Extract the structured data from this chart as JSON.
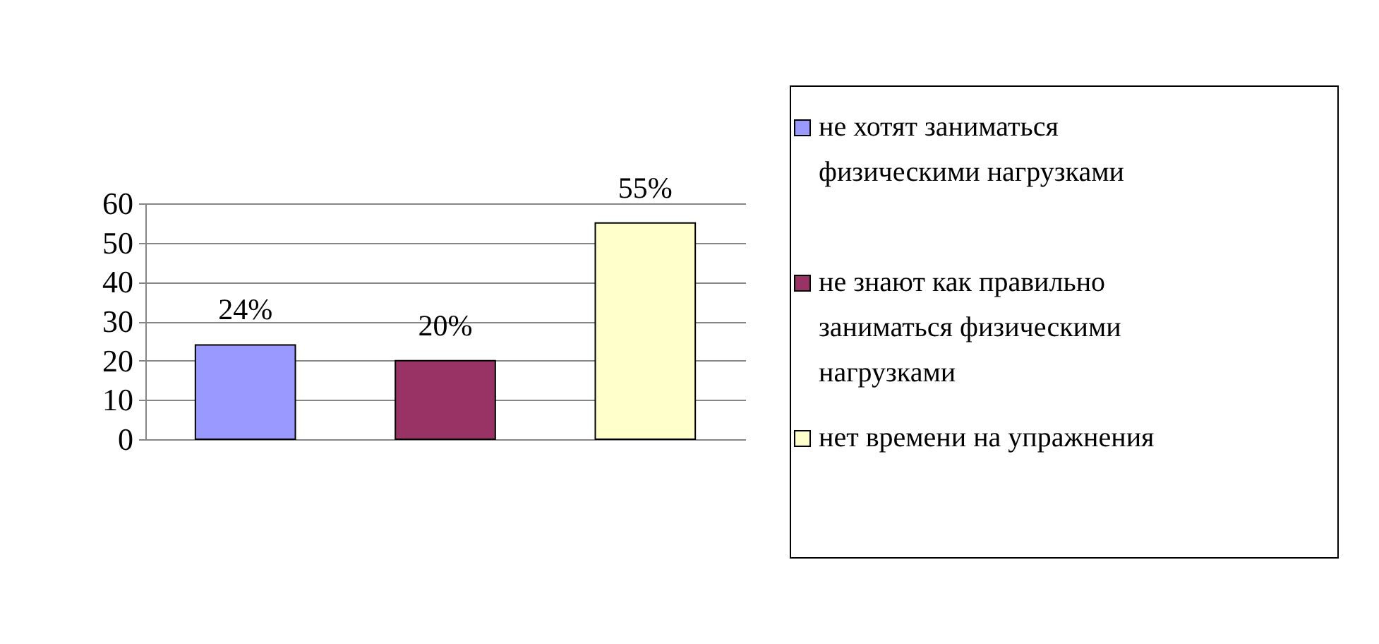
{
  "chart_data": {
    "type": "bar",
    "categories": [
      null,
      null,
      null
    ],
    "series": [
      {
        "name": "не хотят заниматься физическими нагрузками",
        "color": "#9999ff",
        "values": [
          24,
          null,
          null
        ],
        "value_labels": [
          "24%",
          null,
          null
        ]
      },
      {
        "name": "не знают как правильно заниматься физическими нагрузками",
        "color": "#993366",
        "values": [
          null,
          20,
          null
        ],
        "value_labels": [
          null,
          "20%",
          null
        ]
      },
      {
        "name": "нет времени на упражнения",
        "color": "#ffffcc",
        "values": [
          null,
          null,
          55
        ],
        "value_labels": [
          null,
          null,
          "55%"
        ]
      }
    ],
    "ylim": [
      0,
      60
    ],
    "yticks": [
      0,
      10,
      20,
      30,
      40,
      50,
      60
    ],
    "grid": "y",
    "legend": "right",
    "tick_labels": "y"
  }
}
